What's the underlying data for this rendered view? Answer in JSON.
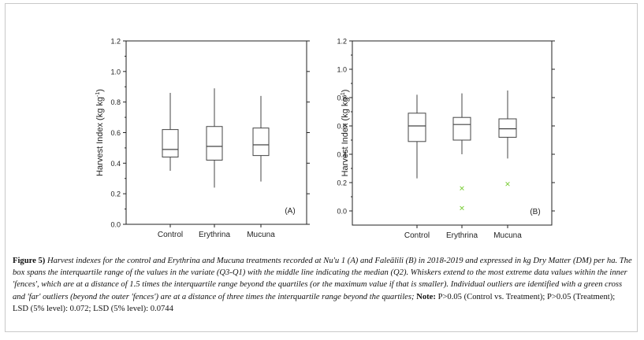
{
  "chart_data": [
    {
      "type": "box",
      "panel_label": "(A)",
      "ylabel": "Harvest Index (kg kg",
      "ylabel_sup": "-1",
      "ylabel_close": ")",
      "ylim": [
        0.0,
        1.2
      ],
      "yticks": [
        "0.0",
        "0.2",
        "0.4",
        "0.6",
        "0.8",
        "1.0",
        "1.2"
      ],
      "categories": [
        "Control",
        "Erythrina",
        "Mucuna"
      ],
      "boxes": [
        {
          "name": "Control",
          "whisker_low": 0.35,
          "q1": 0.44,
          "median": 0.49,
          "q3": 0.62,
          "whisker_high": 0.86,
          "outliers": []
        },
        {
          "name": "Erythrina",
          "whisker_low": 0.24,
          "q1": 0.42,
          "median": 0.51,
          "q3": 0.64,
          "whisker_high": 0.89,
          "outliers": []
        },
        {
          "name": "Mucuna",
          "whisker_low": 0.28,
          "q1": 0.45,
          "median": 0.52,
          "q3": 0.63,
          "whisker_high": 0.84,
          "outliers": []
        }
      ]
    },
    {
      "type": "box",
      "panel_label": "(B)",
      "ylabel": "Harvest Index (kg kg",
      "ylabel_sup": "-1",
      "ylabel_close": ")",
      "ylim": [
        -0.1,
        1.2
      ],
      "yticks": [
        "0.0",
        "0.2",
        "0.4",
        "0.6",
        "0.8",
        "1.0",
        "1.2"
      ],
      "categories": [
        "Control",
        "Erythrina",
        "Mucuna"
      ],
      "boxes": [
        {
          "name": "Control",
          "whisker_low": 0.23,
          "q1": 0.49,
          "median": 0.6,
          "q3": 0.69,
          "whisker_high": 0.82,
          "outliers": []
        },
        {
          "name": "Erythrina",
          "whisker_low": 0.4,
          "q1": 0.5,
          "median": 0.61,
          "q3": 0.66,
          "whisker_high": 0.83,
          "outliers": [
            0.16,
            0.02
          ]
        },
        {
          "name": "Mucuna",
          "whisker_low": 0.37,
          "q1": 0.52,
          "median": 0.58,
          "q3": 0.65,
          "whisker_high": 0.85,
          "outliers": [
            0.19
          ]
        }
      ]
    }
  ],
  "colors": {
    "box": "#444444",
    "outlier": "#7fcf3f",
    "frame": "#c9c9c9"
  },
  "caption": {
    "label": "Figure 5)",
    "text": "Harvest indexes for the control and Erythrina and Mucuna treatments recorded at Nu'u 1 (A) and Faleālili (B) in 2018-2019 and expressed in kg Dry Matter (DM) per ha. The box spans the interquartile range of the values in the variate (Q3-Q1) with the middle line indicating the median (Q2). Whiskers extend to the most extreme data values within the inner 'fences', which are at a distance of 1.5 times the interquartile range beyond the quartiles (or the maximum value if that is smaller). Individual outliers are identified with a green cross and 'far' outliers (beyond the outer 'fences') are at a distance of three times the interquartile range beyond the quartiles;",
    "note_label": "Note:",
    "note_text": "P>0.05 (Control vs. Treatment); P>0.05 (Treatment); LSD (5% level): 0.072; LSD (5% level): 0.0744"
  }
}
